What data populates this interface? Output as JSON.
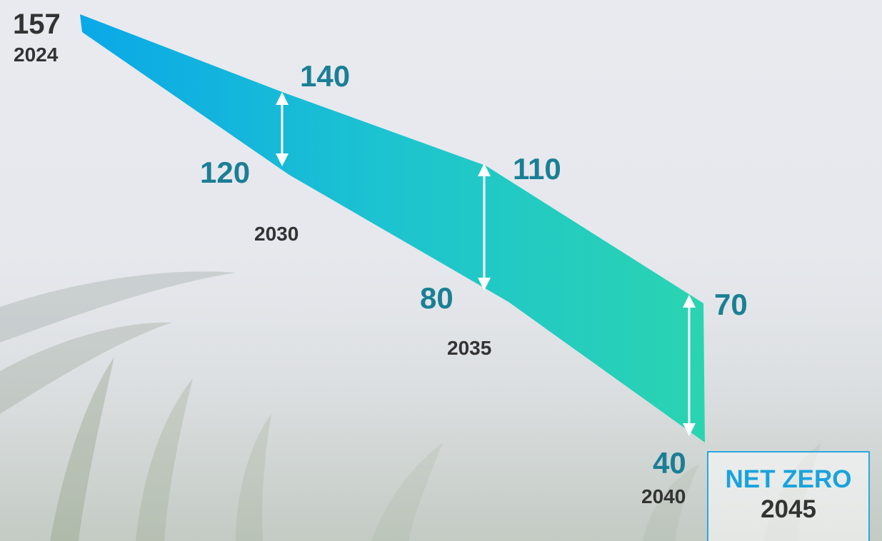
{
  "chart_data": {
    "type": "area",
    "start": {
      "year": "2024",
      "value": 157
    },
    "band": [
      {
        "year": "2030",
        "upper": 140,
        "lower": 120
      },
      {
        "year": "2035",
        "upper": 110,
        "lower": 80
      },
      {
        "year": "2040",
        "upper": 70,
        "lower": 40
      }
    ],
    "target": {
      "label": "NET ZERO",
      "year": "2045"
    },
    "colors": {
      "band_start": "#0aa8e8",
      "band_mid": "#1dc4cf",
      "band_end": "#2ad4b0",
      "value_labels": "#1a7f95",
      "year_labels": "#333333",
      "target_label": "#19a3dd",
      "arrows": "#ffffff"
    }
  }
}
